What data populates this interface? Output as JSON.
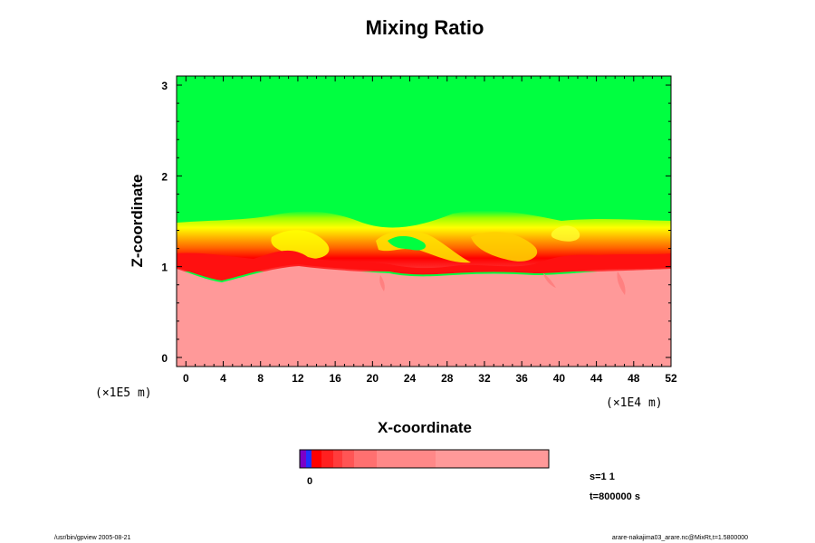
{
  "chart_data": {
    "type": "heatmap",
    "title": "Mixing Ratio",
    "xlabel": "X-coordinate",
    "ylabel": "Z-coordinate",
    "x_scale_label": "(×1E4 m)",
    "y_scale_label": "(×1E5 m)",
    "xlim": [
      -1,
      52
    ],
    "ylim": [
      -0.1,
      3.1
    ],
    "x_ticks": [
      "0",
      "4",
      "8",
      "12",
      "16",
      "20",
      "24",
      "28",
      "32",
      "36",
      "40",
      "44",
      "48",
      "52"
    ],
    "y_ticks": [
      "0",
      "1",
      "2",
      "3"
    ],
    "region_colors": {
      "upper": "#00ff40",
      "lower": "#ff9999"
    },
    "colorbar": {
      "label": "0",
      "colors": [
        "#7b00c8",
        "#2030ff",
        "#ff0000",
        "#ff2020",
        "#ff3c3c",
        "#ff5555",
        "#ff7070",
        "#ff8888",
        "#ff9999"
      ]
    },
    "annotations": {
      "step": "s=1 1",
      "time": "t=800000 s"
    }
  },
  "footer": {
    "left": "/usr/bin/gpview 2005-08-21",
    "right": "arare-nakajima03_arare.nc@MixRt,t=1.5800000"
  }
}
